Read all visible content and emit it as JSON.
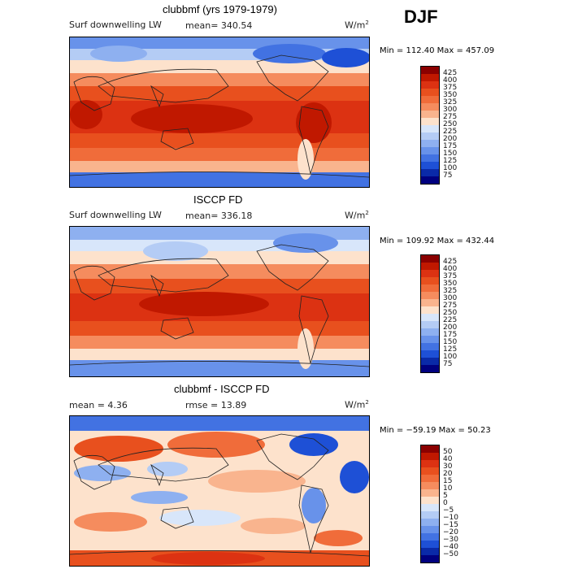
{
  "season": "DJF",
  "panels": [
    {
      "title": "clubbmf (yrs 1979-1979)",
      "left_label": "Surf downwelling LW",
      "stat1": "mean=  340.54",
      "stat2": "",
      "units": "W/m",
      "units_exp": "2",
      "minmax": "Min = 112.40 Max = 457.09",
      "colorbar": {
        "labels": [
          "425",
          "400",
          "375",
          "350",
          "325",
          "300",
          "275",
          "250",
          "225",
          "200",
          "175",
          "150",
          "125",
          "100",
          "75"
        ],
        "colors": [
          "#8b0000",
          "#c01800",
          "#dc3212",
          "#e8501e",
          "#f06c3a",
          "#f58c5e",
          "#f9b48e",
          "#fde2cc",
          "#d8e6fa",
          "#b4ccf5",
          "#8eb0f0",
          "#6892ea",
          "#4272e2",
          "#1e50d6",
          "#0a2aa8",
          "#00007f"
        ]
      }
    },
    {
      "title": "ISCCP FD",
      "left_label": "Surf downwelling LW",
      "stat1": "mean=  336.18",
      "stat2": "",
      "units": "W/m",
      "units_exp": "2",
      "minmax": "Min = 109.92 Max = 432.44",
      "colorbar": {
        "labels": [
          "425",
          "400",
          "375",
          "350",
          "325",
          "300",
          "275",
          "250",
          "225",
          "200",
          "175",
          "150",
          "125",
          "100",
          "75"
        ],
        "colors": [
          "#8b0000",
          "#c01800",
          "#dc3212",
          "#e8501e",
          "#f06c3a",
          "#f58c5e",
          "#f9b48e",
          "#fde2cc",
          "#d8e6fa",
          "#b4ccf5",
          "#8eb0f0",
          "#6892ea",
          "#4272e2",
          "#1e50d6",
          "#0a2aa8",
          "#00007f"
        ]
      }
    },
    {
      "title": "clubbmf - ISCCP FD",
      "left_label": "mean =    4.36",
      "stat1": "rmse =   13.89",
      "stat2": "",
      "units": "W/m",
      "units_exp": "2",
      "minmax": "Min = −59.19 Max =   50.23",
      "colorbar": {
        "labels": [
          "50",
          "40",
          "30",
          "20",
          "15",
          "10",
          "5",
          "0",
          "−5",
          "−10",
          "−15",
          "−20",
          "−30",
          "−40",
          "−50"
        ],
        "colors": [
          "#8b0000",
          "#c01800",
          "#dc3212",
          "#e8501e",
          "#f06c3a",
          "#f58c5e",
          "#f9b48e",
          "#fde2cc",
          "#d8e6fa",
          "#b4ccf5",
          "#8eb0f0",
          "#6892ea",
          "#4272e2",
          "#1e50d6",
          "#0a2aa8",
          "#00007f"
        ]
      }
    }
  ]
}
